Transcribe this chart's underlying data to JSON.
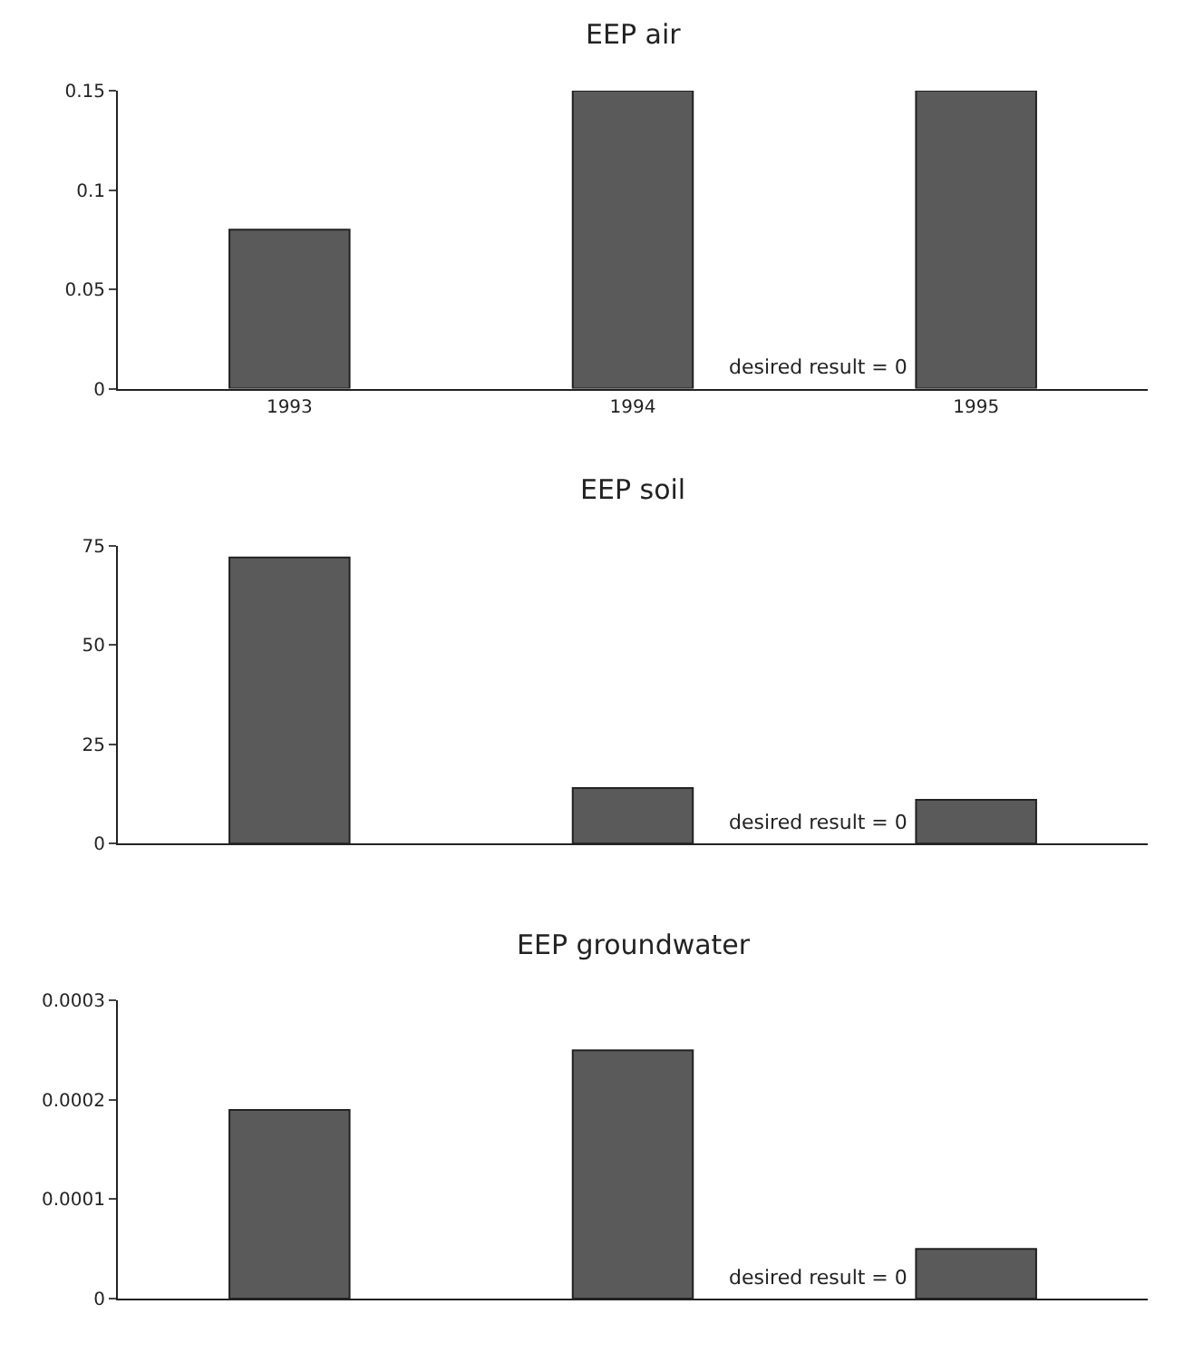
{
  "chart_data": [
    {
      "type": "bar",
      "title": "EEP air",
      "categories": [
        "1993",
        "1994",
        "1995"
      ],
      "values": [
        0.08,
        0.15,
        0.15
      ],
      "color": "#5a5a5a",
      "ylim": [
        0,
        0.15
      ],
      "yticks": [
        0,
        0.05,
        0.1,
        0.15
      ],
      "annotations": [
        "desired result = 0"
      ]
    },
    {
      "type": "bar",
      "title": "EEP soil",
      "categories": [
        null,
        null,
        null
      ],
      "values": [
        72,
        14,
        11
      ],
      "color": "#5a5a5a",
      "ylim": [
        0,
        75
      ],
      "yticks": [
        0,
        25,
        50,
        75
      ],
      "annotations": [
        "desired result = 0"
      ]
    },
    {
      "type": "bar",
      "title": "EEP groundwater",
      "categories": [
        null,
        null,
        null
      ],
      "values": [
        0.00019,
        0.00025,
        5e-05
      ],
      "color": "#5a5a5a",
      "ylim": [
        0,
        0.0003
      ],
      "yticks": [
        0,
        0.0001,
        0.0002,
        0.0003
      ],
      "annotations": [
        "desired result = 0"
      ]
    }
  ]
}
